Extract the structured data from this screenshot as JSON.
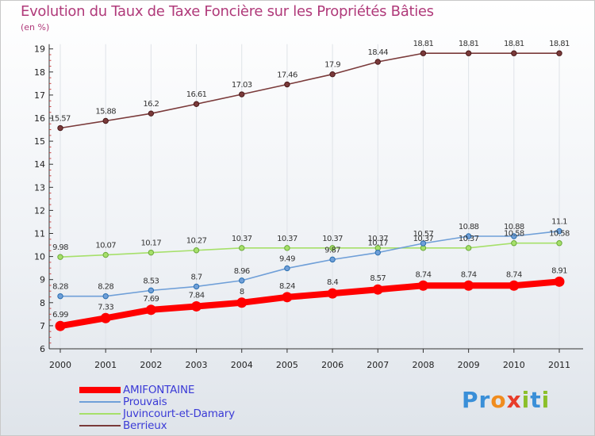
{
  "title": "Evolution du Taux de Taxe Foncière sur les Propriétés Bâties",
  "unit": "(en %)",
  "logo": {
    "letters": [
      "P",
      "r",
      "o",
      "x",
      "i",
      "t",
      "i"
    ],
    "colors": [
      "#3a8fd8",
      "#3a8fd8",
      "#f08c1e",
      "#e83c2a",
      "#8bbf2a",
      "#3a8fd8",
      "#8bbf2a"
    ]
  },
  "chart_data": {
    "type": "line",
    "title": "Evolution du Taux de Taxe Foncière sur les Propriétés Bâties",
    "ylabel": "(en %)",
    "x": [
      "2000",
      "2001",
      "2002",
      "2003",
      "2004",
      "2005",
      "2006",
      "2007",
      "2008",
      "2009",
      "2010",
      "2011"
    ],
    "ylim": [
      6,
      19
    ],
    "yticks": [
      6,
      7,
      8,
      9,
      10,
      11,
      12,
      13,
      14,
      15,
      16,
      17,
      18,
      19
    ],
    "legend_position": "bottom-left",
    "series": [
      {
        "name": "AMIFONTAINE",
        "color": "#ff0000",
        "values": [
          6.99,
          7.33,
          7.69,
          7.84,
          8,
          8.24,
          8.4,
          8.57,
          8.74,
          8.74,
          8.74,
          8.91
        ],
        "labels": [
          "6.99",
          "7.33",
          "7.69",
          "7.84",
          "8",
          "8.24",
          "8.4",
          "8.57",
          "8.74",
          "8.74",
          "8.74",
          "8.91"
        ]
      },
      {
        "name": "Prouvais",
        "color": "#6f9fd8",
        "values": [
          8.28,
          8.28,
          8.53,
          8.7,
          8.96,
          9.49,
          9.87,
          10.17,
          10.57,
          10.88,
          10.88,
          11.1
        ],
        "labels": [
          "8.28",
          "8.28",
          "8.53",
          "8.7",
          "8.96",
          "9.49",
          "9.87",
          "10.17",
          "10.57",
          "10.88",
          "10.88",
          "11.1"
        ]
      },
      {
        "name": "Juvincourt-et-Damary",
        "color": "#a6e06a",
        "values": [
          9.98,
          10.07,
          10.17,
          10.27,
          10.37,
          10.37,
          10.37,
          10.37,
          10.37,
          10.37,
          10.58,
          10.58
        ],
        "labels": [
          "9.98",
          "10.07",
          "10.17",
          "10.27",
          "10.37",
          "10.37",
          "10.37",
          "10.37",
          "10.37",
          "10.37",
          "10.58",
          "10.58"
        ]
      },
      {
        "name": "Berrieux",
        "color": "#7a3a3a",
        "values": [
          15.57,
          15.88,
          16.2,
          16.61,
          17.03,
          17.46,
          17.9,
          18.44,
          18.81,
          18.81,
          18.81,
          18.81
        ],
        "labels": [
          "15.57",
          "15.88",
          "16.2",
          "16.61",
          "17.03",
          "17.46",
          "17.9",
          "18.44",
          "18.81",
          "18.81",
          "18.81",
          "18.81"
        ]
      }
    ]
  }
}
